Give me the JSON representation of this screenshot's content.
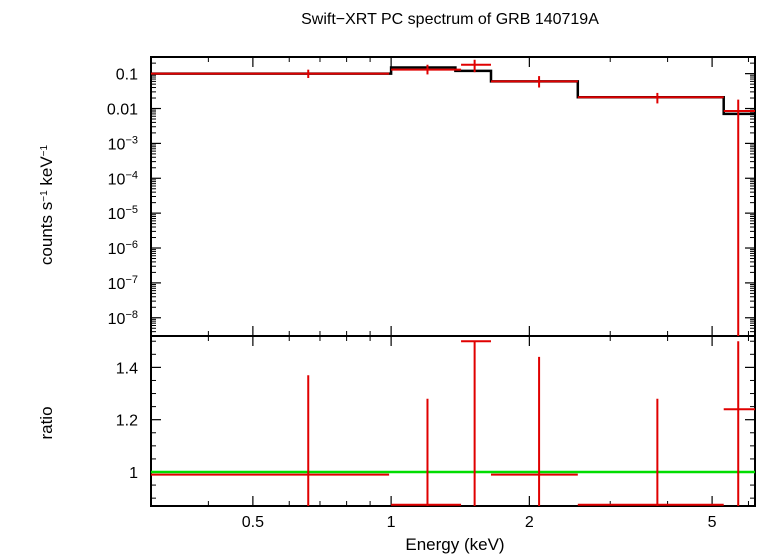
{
  "chart_data": [
    {
      "type": "line",
      "panel": "spectrum",
      "title": "Swift−XRT PC spectrum of GRB 140719A",
      "ylabel": "counts s⁻¹ keV⁻¹",
      "yscale": "log",
      "xscale": "log",
      "xlim": [
        0.3,
        6.2
      ],
      "ylim": [
        3e-09,
        0.3
      ],
      "y_ticks": [
        {
          "value": 0.1,
          "label": "0.1"
        },
        {
          "value": 0.01,
          "label": "0.01"
        },
        {
          "value": 0.001,
          "base": "10",
          "exp": "−3"
        },
        {
          "value": 0.0001,
          "base": "10",
          "exp": "−4"
        },
        {
          "value": 1e-05,
          "base": "10",
          "exp": "−5"
        },
        {
          "value": 1e-06,
          "base": "10",
          "exp": "−6"
        },
        {
          "value": 1e-07,
          "base": "10",
          "exp": "−7"
        },
        {
          "value": 1e-08,
          "base": "10",
          "exp": "−8"
        }
      ],
      "model_steps": [
        {
          "x0": 0.3,
          "x1": 1.0,
          "y": 0.1
        },
        {
          "x0": 1.0,
          "x1": 1.38,
          "y": 0.15
        },
        {
          "x0": 1.38,
          "x1": 1.65,
          "y": 0.12
        },
        {
          "x0": 1.65,
          "x1": 2.55,
          "y": 0.06
        },
        {
          "x0": 2.55,
          "x1": 5.3,
          "y": 0.021
        },
        {
          "x0": 5.3,
          "x1": 6.2,
          "y": 0.007
        }
      ],
      "data_points": [
        {
          "x": 0.66,
          "x_lo": 0.3,
          "x_hi": 0.99,
          "y": 0.1,
          "y_lo": 0.075,
          "y_hi": 0.13
        },
        {
          "x": 1.2,
          "x_lo": 1.0,
          "x_hi": 1.42,
          "y": 0.13,
          "y_lo": 0.095,
          "y_hi": 0.18
        },
        {
          "x": 1.52,
          "x_lo": 1.42,
          "x_hi": 1.65,
          "y": 0.18,
          "y_lo": 0.11,
          "y_hi": 0.25
        },
        {
          "x": 2.1,
          "x_lo": 1.65,
          "x_hi": 2.55,
          "y": 0.06,
          "y_lo": 0.04,
          "y_hi": 0.085
        },
        {
          "x": 3.8,
          "x_lo": 2.55,
          "x_hi": 5.3,
          "y": 0.021,
          "y_lo": 0.014,
          "y_hi": 0.028
        },
        {
          "x": 5.7,
          "x_lo": 5.3,
          "x_hi": 6.2,
          "y": 0.0085,
          "y_lo": 3e-09,
          "y_hi": 0.018
        }
      ]
    },
    {
      "type": "scatter",
      "panel": "ratio",
      "ylabel": "ratio",
      "xlabel": "Energy (keV)",
      "xscale": "log",
      "xlim": [
        0.3,
        6.2
      ],
      "ylim": [
        0.87,
        1.52
      ],
      "reference_line": 1.0,
      "x_ticks": [
        {
          "value": 0.5,
          "label": "0.5"
        },
        {
          "value": 1,
          "label": "1"
        },
        {
          "value": 2,
          "label": "2"
        },
        {
          "value": 5,
          "label": "5"
        }
      ],
      "y_ticks": [
        {
          "value": 1.0,
          "label": "1"
        },
        {
          "value": 1.2,
          "label": "1.2"
        },
        {
          "value": 1.4,
          "label": "1.4"
        }
      ],
      "data_points": [
        {
          "x": 0.66,
          "x_lo": 0.3,
          "x_hi": 0.99,
          "y": 0.99,
          "y_lo": 0.87,
          "y_hi": 1.37
        },
        {
          "x": 1.2,
          "x_lo": 1.0,
          "x_hi": 1.42,
          "y": 0.875,
          "y_lo": 0.87,
          "y_hi": 1.28
        },
        {
          "x": 1.52,
          "x_lo": 1.42,
          "x_hi": 1.65,
          "y": 1.5,
          "y_lo": 0.87,
          "y_hi": 1.5
        },
        {
          "x": 2.1,
          "x_lo": 1.65,
          "x_hi": 2.55,
          "y": 0.99,
          "y_lo": 0.87,
          "y_hi": 1.44
        },
        {
          "x": 3.8,
          "x_lo": 2.55,
          "x_hi": 5.3,
          "y": 0.875,
          "y_lo": 0.87,
          "y_hi": 1.28
        },
        {
          "x": 5.7,
          "x_lo": 5.3,
          "x_hi": 6.2,
          "y": 1.24,
          "y_lo": 0.87,
          "y_hi": 1.5
        }
      ]
    }
  ],
  "colors": {
    "data": "#e00000",
    "model": "#000000",
    "reference": "#00dd00"
  }
}
